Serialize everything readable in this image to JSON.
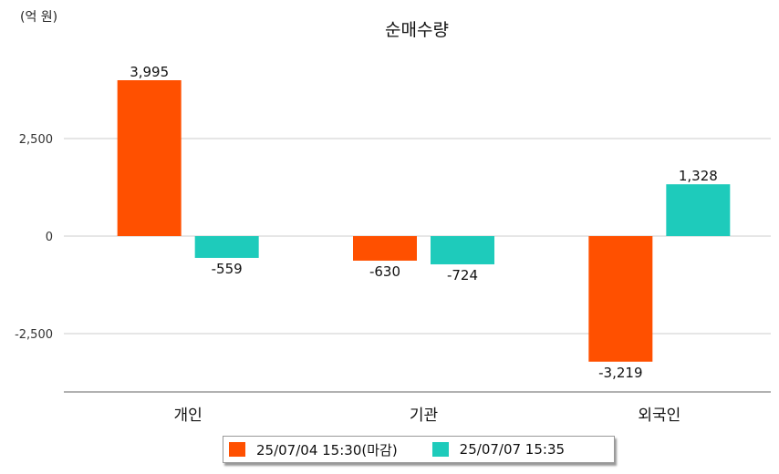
{
  "chart_data": {
    "type": "bar",
    "title": "순매수량",
    "unit_label": "(억 원)",
    "categories": [
      "개인",
      "기관",
      "외국인"
    ],
    "series": [
      {
        "name": "25/07/04 15:30(마감)",
        "color": "#ff5000",
        "values": [
          3995,
          -630,
          -3219
        ],
        "labels": [
          "3,995",
          "-630",
          "-3,219"
        ]
      },
      {
        "name": "25/07/07 15:35",
        "color": "#1ecbbb",
        "values": [
          -559,
          -724,
          1328
        ],
        "labels": [
          "-559",
          "-724",
          "1,328"
        ]
      }
    ],
    "yticks": [
      2500,
      0,
      -2500
    ],
    "ytick_labels": [
      "2,500",
      "0",
      "-2,500"
    ],
    "ylim": [
      -4000,
      5000
    ],
    "grid": true,
    "legend_position": "bottom"
  }
}
